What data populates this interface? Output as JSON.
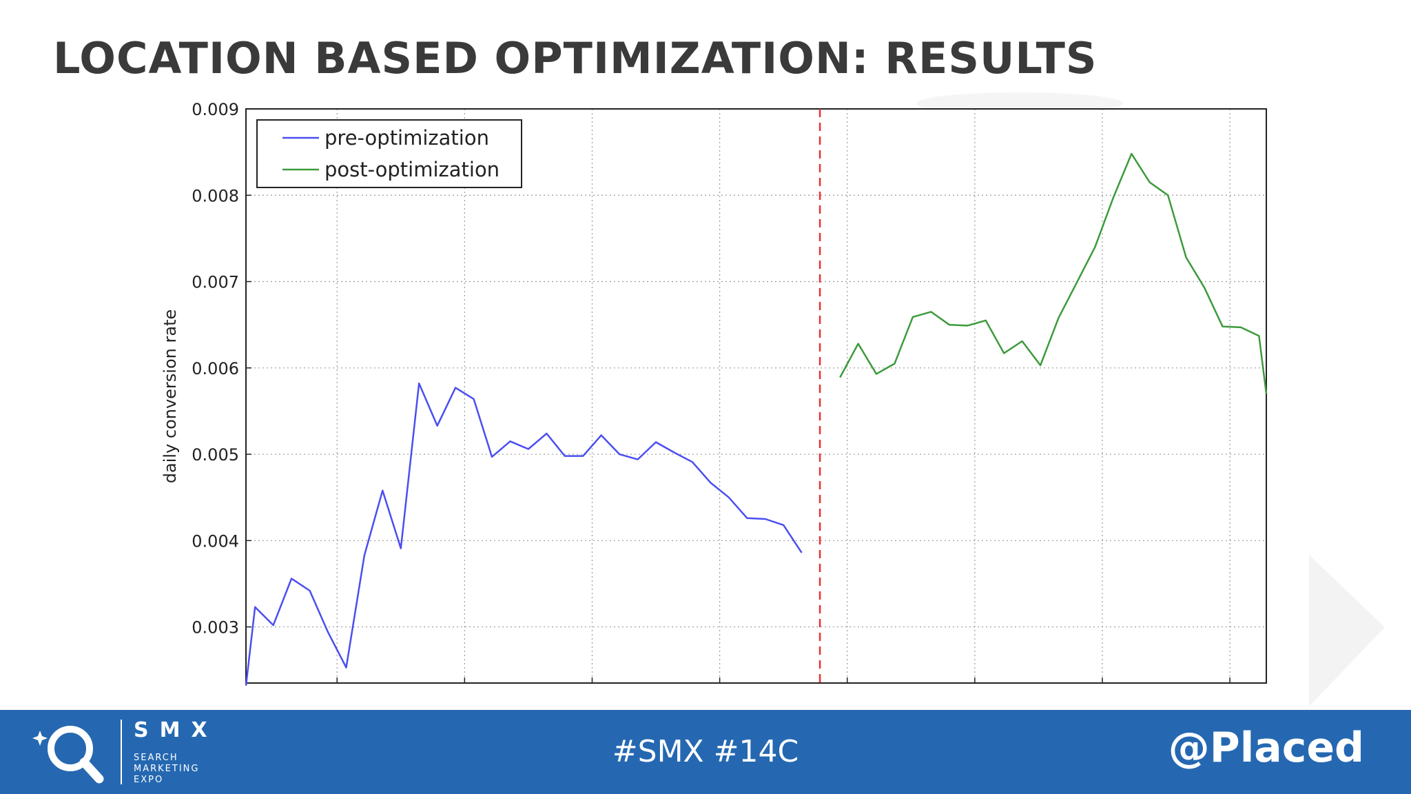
{
  "slide": {
    "title": "LOCATION BASED OPTIMIZATION: RESULTS"
  },
  "footer": {
    "hashtag": "#SMX #14C",
    "handle": "@Placed",
    "logo_name": "SMX",
    "logo_sub": [
      "SEARCH",
      "MARKETING",
      "EXPO"
    ],
    "background_color": "#2568b1"
  },
  "chart_data": {
    "type": "line",
    "title": "",
    "xlabel": "",
    "ylabel": "daily conversion rate",
    "ylim": [
      0.00235,
      0.009
    ],
    "xlim": [
      0,
      56
    ],
    "yticks": [
      "0.003",
      "0.004",
      "0.005",
      "0.006",
      "0.007",
      "0.008",
      "0.009"
    ],
    "yticks_values": [
      0.003,
      0.004,
      0.005,
      0.006,
      0.007,
      0.008,
      0.009
    ],
    "xgrid_values": [
      5,
      12,
      19,
      26,
      33,
      40,
      47,
      54
    ],
    "grid": true,
    "legend_position": "top-left",
    "divider": {
      "x": 31.5,
      "color": "#e8312f",
      "style": "dashed"
    },
    "series": [
      {
        "name": "pre-optimization",
        "color": "#4a4ef0",
        "x": [
          0,
          0.5,
          1.5,
          2.5,
          3.5,
          4.5,
          5.5,
          6.5,
          7.5,
          8.5,
          9.5,
          10.5,
          11.5,
          12.5,
          13.5,
          14.5,
          15.5,
          16.5,
          17.5,
          18.5,
          19.5,
          20.5,
          21.5,
          22.5,
          23.5,
          24.5,
          25.5,
          26.5,
          27.5,
          28.5,
          29.5,
          30.5
        ],
        "y": [
          0.00232,
          0.00323,
          0.00302,
          0.00356,
          0.00342,
          0.00294,
          0.00253,
          0.00383,
          0.00458,
          0.00391,
          0.00582,
          0.00533,
          0.00577,
          0.00564,
          0.00497,
          0.00515,
          0.00506,
          0.00524,
          0.00498,
          0.00498,
          0.00522,
          0.005,
          0.00494,
          0.00514,
          0.00502,
          0.00491,
          0.00467,
          0.0045,
          0.00426,
          0.00425,
          0.00418,
          0.00386
        ]
      },
      {
        "name": "post-optimization",
        "color": "#3c9a3c",
        "x": [
          32.6,
          33.6,
          34.6,
          35.6,
          36.6,
          37.6,
          38.6,
          39.6,
          40.6,
          41.6,
          42.6,
          43.6,
          44.6,
          45.6,
          46.6,
          47.6,
          48.6,
          49.6,
          50.6,
          51.6,
          52.6,
          53.6,
          54.6,
          55.6,
          56
        ],
        "y": [
          0.00589,
          0.00628,
          0.00593,
          0.00605,
          0.00659,
          0.00665,
          0.0065,
          0.00649,
          0.00655,
          0.00617,
          0.00631,
          0.00603,
          0.00658,
          0.00699,
          0.0074,
          0.00797,
          0.00848,
          0.00815,
          0.008,
          0.00728,
          0.00693,
          0.00648,
          0.00647,
          0.00637,
          0.0057
        ]
      }
    ]
  }
}
